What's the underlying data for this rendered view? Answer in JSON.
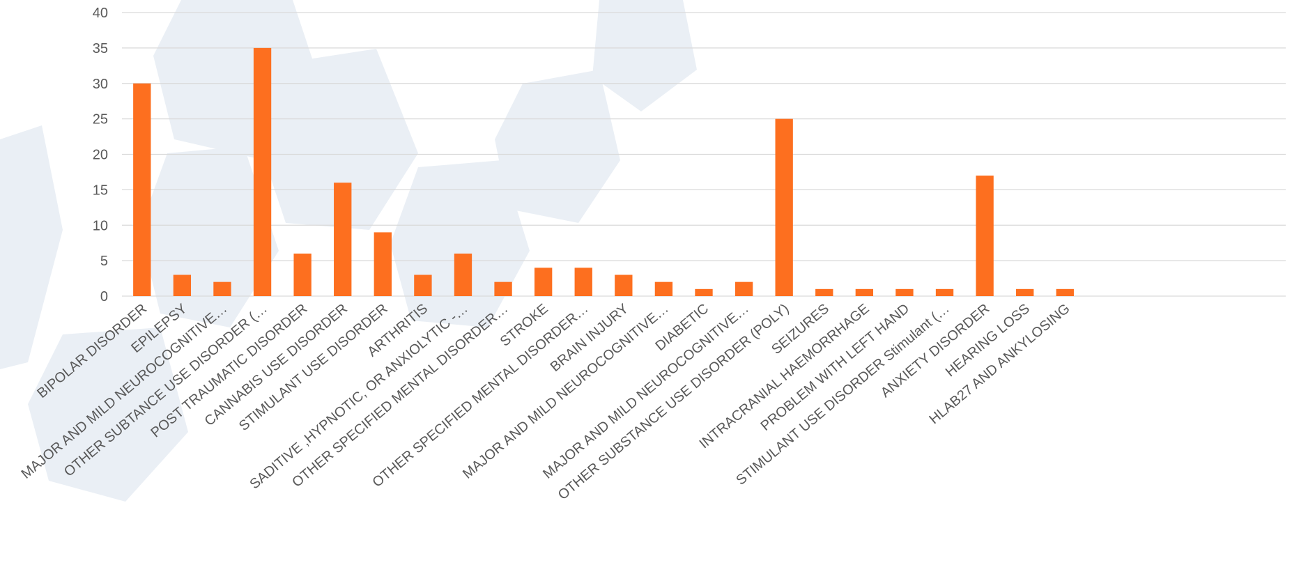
{
  "chart_data": {
    "type": "bar",
    "categories": [
      "BIPOLAR DISORDER",
      "EPILEPSY",
      "MAJOR AND MILD NEUROCOGNITIVE…",
      "OTHER SUBTANCE USE DISORDER (…",
      "POST TRAUMATIC DISORDER",
      "CANNABIS USE  DISORDER",
      "STIMULANT USE DISORDER",
      "ARTHRITIS",
      "SADITIVE ,HYPNOTIC, OR ANXIOLYTIC -…",
      "OTHER SPECIFIED MENTAL DISORDER…",
      "STROKE",
      "OTHER SPECIFIED MENTAL DISORDER…",
      "BRAIN INJURY",
      "MAJOR AND MILD NEUROCOGNITIVE…",
      "DIABETIC",
      "MAJOR AND MILD NEUROCOGNITIVE…",
      "OTHER SUBSTANCE USE DISORDER (POLY)",
      "SEIZURES",
      "INTRACRANIAL HAEMORRHAGE",
      "PROBLEM WITH LEFT HAND",
      "STIMULANT USE DISORDER Stimulant (…",
      "ANXIETY DISORDER",
      "HEARING LOSS",
      "HLAB27 AND ANKYLOSING",
      null,
      null,
      null,
      null,
      null
    ],
    "values": [
      30,
      3,
      2,
      35,
      6,
      16,
      9,
      3,
      6,
      2,
      4,
      4,
      3,
      2,
      1,
      2,
      25,
      1,
      1,
      1,
      1,
      17,
      1,
      1,
      null,
      null,
      null,
      null,
      null
    ],
    "color": "#fd6f1f",
    "ylim": [
      0,
      40
    ],
    "yticks": [
      0,
      5,
      10,
      15,
      20,
      25,
      30,
      35,
      40
    ],
    "grid": true
  }
}
